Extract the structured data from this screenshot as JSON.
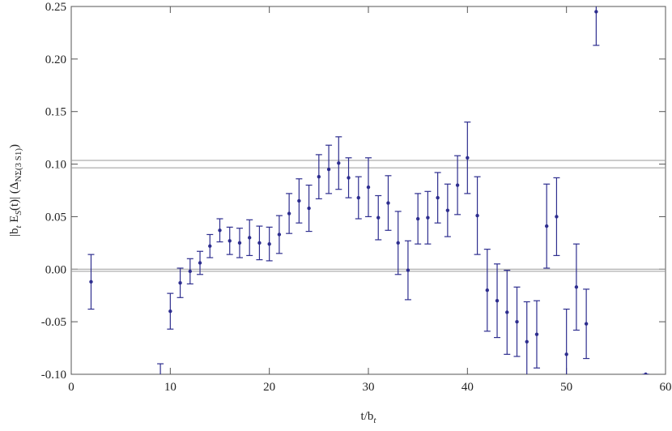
{
  "chart_data": {
    "type": "errorbar-scatter",
    "xlabel_parts": [
      "t/b",
      "t"
    ],
    "ylabel_parts": [
      "|b",
      "t",
      " E",
      "S",
      "(t)| (Δ",
      "NΣ(3 S1)",
      ")"
    ],
    "x": [
      2,
      9,
      10,
      11,
      12,
      13,
      14,
      15,
      16,
      17,
      18,
      19,
      20,
      21,
      22,
      23,
      24,
      25,
      26,
      27,
      28,
      29,
      30,
      31,
      32,
      33,
      34,
      35,
      36,
      37,
      38,
      39,
      40,
      41,
      42,
      43,
      44,
      45,
      46,
      47,
      48,
      49,
      50,
      51,
      52,
      53,
      58
    ],
    "values": [
      -0.012,
      -0.115,
      -0.04,
      -0.013,
      -0.002,
      0.006,
      0.022,
      0.037,
      0.027,
      0.025,
      0.03,
      0.025,
      0.024,
      0.033,
      0.053,
      0.065,
      0.058,
      0.088,
      0.095,
      0.101,
      0.087,
      0.068,
      0.078,
      0.049,
      0.063,
      0.025,
      -0.001,
      0.048,
      0.049,
      0.068,
      0.056,
      0.08,
      0.106,
      0.051,
      -0.02,
      -0.03,
      -0.041,
      -0.05,
      -0.069,
      -0.062,
      0.041,
      0.05,
      -0.081,
      -0.017,
      -0.052,
      0.245,
      -0.1
    ],
    "errors": [
      0.026,
      0.025,
      0.017,
      0.014,
      0.012,
      0.011,
      0.011,
      0.011,
      0.013,
      0.014,
      0.017,
      0.016,
      0.016,
      0.018,
      0.019,
      0.021,
      0.022,
      0.021,
      0.023,
      0.025,
      0.019,
      0.02,
      0.028,
      0.021,
      0.026,
      0.03,
      0.028,
      0.024,
      0.025,
      0.024,
      0.025,
      0.028,
      0.034,
      0.037,
      0.039,
      0.035,
      0.04,
      0.033,
      0.038,
      0.032,
      0.04,
      0.037,
      0.043,
      0.041,
      0.033,
      0.032,
      0
    ],
    "color": "#2e2e8f",
    "reference_lines": [
      0.1035,
      0.0965,
      0,
      -0.002
    ],
    "reference_color": "#9a9a9a",
    "xlim": [
      0,
      60
    ],
    "xticks": [
      0,
      10,
      20,
      30,
      40,
      50,
      60
    ],
    "ylim": [
      -0.1,
      0.25
    ],
    "yticks": [
      {
        "value": -0.1,
        "label": "-0.10"
      },
      {
        "value": -0.05,
        "label": "-0.05"
      },
      {
        "value": 0,
        "label": "0.00"
      },
      0.05,
      {
        "value": 0.1,
        "label": "0.10"
      },
      0.15,
      {
        "value": 0.2,
        "label": "0.20"
      },
      0.25
    ]
  }
}
